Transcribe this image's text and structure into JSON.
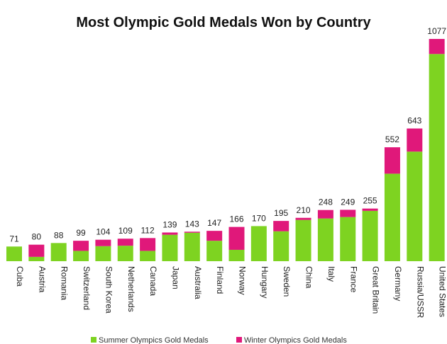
{
  "chart_data": {
    "type": "bar",
    "stacked": true,
    "title": "Most Olympic Gold Medals Won by Country",
    "xlabel": "",
    "ylabel": "",
    "ylim": [
      0,
      1100
    ],
    "grid": false,
    "legend_position": "bottom",
    "categories": [
      "Cuba",
      "Austria",
      "Romania",
      "Switzerland",
      "South Korea",
      "Netherlands",
      "Canada",
      "Japan",
      "Australia",
      "Finland",
      "Norway",
      "Hungary",
      "Sweden",
      "China",
      "Italy",
      "France",
      "Great Britain",
      "Germany",
      "Russia/USSR",
      "United States"
    ],
    "totals": [
      71,
      80,
      88,
      99,
      104,
      109,
      112,
      139,
      143,
      147,
      166,
      170,
      195,
      210,
      248,
      249,
      255,
      552,
      643,
      1077
    ],
    "series": [
      {
        "name": "Summer Olympics Gold Medals",
        "color": "#7ed321",
        "values": [
          71,
          21,
          88,
          50,
          73,
          75,
          50,
          128,
          138,
          99,
          55,
          170,
          145,
          200,
          207,
          214,
          244,
          424,
          531,
          1004
        ]
      },
      {
        "name": "Winter Olympics Gold Medals",
        "color": "#e0187a",
        "values": [
          0,
          59,
          0,
          49,
          31,
          34,
          62,
          11,
          5,
          48,
          111,
          0,
          50,
          10,
          41,
          35,
          11,
          128,
          112,
          73
        ]
      }
    ]
  }
}
